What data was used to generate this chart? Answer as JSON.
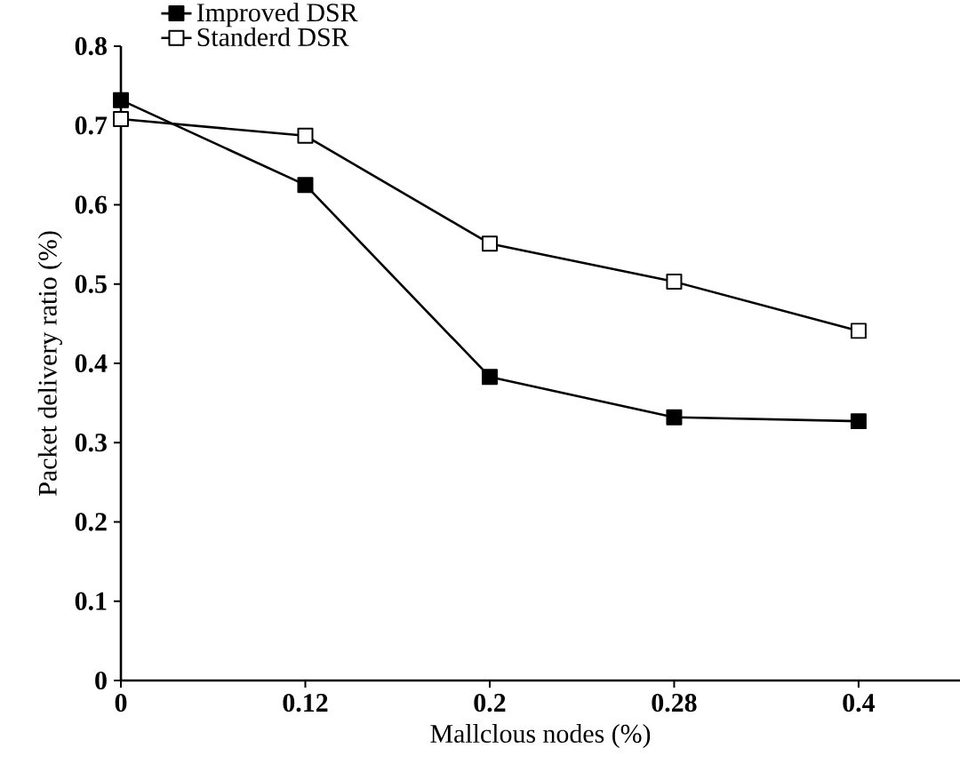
{
  "chart_data": {
    "type": "line",
    "xlabel": "Mallclous nodes (%)",
    "ylabel": "Packet delivery ratio (%)",
    "categories": [
      "0",
      "0.12",
      "0.2",
      "0.28",
      "0.4"
    ],
    "series": [
      {
        "name": "Improved DSR",
        "color": "#000000",
        "values": [
          0.732,
          0.625,
          0.383,
          0.332,
          0.327
        ]
      },
      {
        "name": "Standerd DSR",
        "color": "#000000",
        "values": [
          0.708,
          0.687,
          0.551,
          0.503,
          0.441
        ]
      }
    ],
    "ylim": [
      0,
      0.8
    ],
    "yticks": [
      0,
      0.1,
      0.2,
      0.3,
      0.4,
      0.5,
      0.6,
      0.7,
      0.8
    ],
    "marker": "square",
    "line_style": "solid",
    "legend": "top left",
    "grid": false
  }
}
